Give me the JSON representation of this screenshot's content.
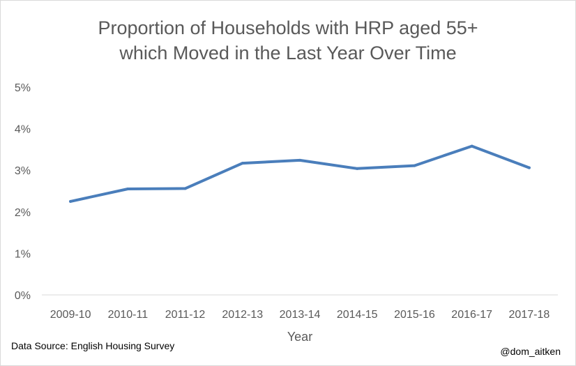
{
  "chart_data": {
    "type": "line",
    "title": [
      "Proportion of Households with HRP aged 55+",
      "which Moved in the Last Year Over Time"
    ],
    "xlabel": "Year",
    "ylabel": "",
    "categories": [
      "2009-10",
      "2010-11",
      "2011-12",
      "2012-13",
      "2013-14",
      "2014-15",
      "2015-16",
      "2016-17",
      "2017-18"
    ],
    "series": [
      {
        "values": [
          2.25,
          2.55,
          2.56,
          3.17,
          3.24,
          3.04,
          3.11,
          3.58,
          3.06
        ],
        "color": "#4a7ebb"
      }
    ],
    "ylim": [
      0,
      5
    ],
    "yticks": [
      0,
      1,
      2,
      3,
      4,
      5
    ],
    "ytick_labels": [
      "0%",
      "1%",
      "2%",
      "3%",
      "4%",
      "5%"
    ],
    "grid": false,
    "legend": "none"
  },
  "source_note": "Data Source: English Housing Survey",
  "handle": "@dom_aitken"
}
